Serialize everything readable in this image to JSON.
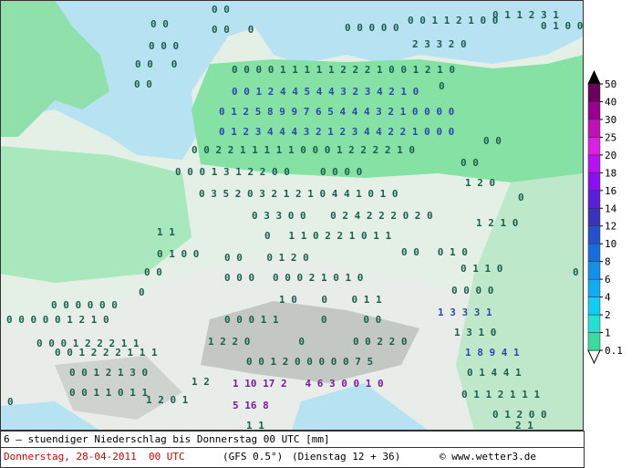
{
  "map_labels": [
    "0 0",
    "0 0 1 1 2 1 0 0",
    "0 1 1 2 3 1",
    "0 1 0 0",
    "0 0",
    "0 0   0",
    "0 0 0",
    "0 0 0 0 0",
    "2 3 3 2 0",
    "0 0   0",
    "0 0 0 0 1 1 1 1 1 2 2 2 1 0 0 1 2 1 0",
    "0 0",
    "0 0 1 2 4 4 5 4 4 3 2 3 4 2 1 0",
    "0",
    "0 1 2 5 8 9 9 7 6 5 4 4 4 3 2 1 0 0 0 0",
    "0 1 2 3 4 4 4 3 2 1 2 3 4 4 2 2 1 0 0 0",
    "0 0",
    "0 0 2 2 1 1 1 1 1 0 0 0 1 2 2 2 2 1 0",
    "0 0",
    "0 0 0 1 3 1 2 2 0 0     0 0 0 0",
    "1 2 0",
    "0 3 5 2 0 3 2 1 2 1 0 4 4 1 0 1 0",
    "0",
    "0 3 3 0 0    0 2 4 2 2 2 0 2 0",
    "1 2 1 0",
    "1 1",
    "0   1 1 0 2 2 1 0 1 1",
    "0 1 0 0",
    "0 0    0 1 2 0",
    "0 0   0 1 0",
    "0 0",
    "0 1 1 0",
    "0",
    "0 0 0   0 0 0 2 1 0 1 0",
    "0 0 0 0",
    "0",
    "0 0 0 0 0 0",
    "1 0    0    0 1 1",
    "0 0 0 0 0 1 2 1 0",
    "0 0 0 1 1       0      0 0",
    "1 3 3 3 1",
    "0 0 0 1 2 2 2 1 1",
    "1 2 2 0        0        0 0 2 2 0",
    "1 3 1 0",
    "0 0 1 2 2 2 1 1 1",
    "1 8 9 4 1",
    "0 0 1 2 0 0 0 0 0 7 5",
    "0 0 1 2 1 3 0",
    "1 2",
    "1 10 17 2   4 6 3 0 0 1 0",
    "0 1 4 4 1",
    "0 0 1 1 0 1 1",
    "0 1 1 2 1 1 1",
    "1 2 0 1",
    "5 16 8",
    "0",
    "0 1 2 0 0",
    "1 1",
    "2 1"
  ],
  "colorbar": {
    "levels": [
      0.1,
      1,
      2,
      4,
      6,
      8,
      10,
      12,
      14,
      16,
      18,
      20,
      25,
      30,
      40,
      50
    ],
    "colors": [
      "#36dca0",
      "#22e0d4",
      "#10cdf2",
      "#10acf2",
      "#1290ea",
      "#156ede",
      "#2450cc",
      "#3a32bc",
      "#5a1ed8",
      "#8a10f0",
      "#b810f0",
      "#dc20e0",
      "#c010b8",
      "#980090",
      "#6a005c"
    ]
  },
  "footer": {
    "line1": "6 — stuendiger Niederschlag bis Donnerstag 00 UTC [mm]",
    "date": "Donnerstag, 28-04-2011  00 UTC",
    "model": "(GFS 0.5°)",
    "run": "(Dienstag 12 + 36)",
    "credit": "© www.wetter3.de"
  }
}
